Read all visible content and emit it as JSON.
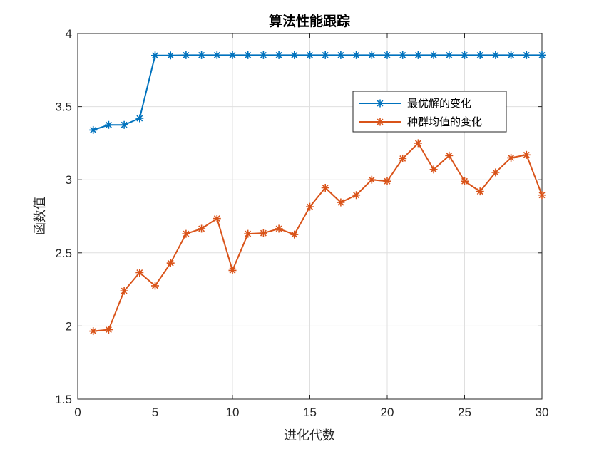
{
  "chart_data": {
    "type": "line",
    "title": "算法性能跟踪",
    "xlabel": "进化代数",
    "ylabel": "函数值",
    "xlim": [
      0,
      30
    ],
    "ylim": [
      1.5,
      4
    ],
    "xticks": [
      0,
      5,
      10,
      15,
      20,
      25,
      30
    ],
    "xtick_labels": [
      "0",
      "5",
      "10",
      "15",
      "20",
      "25",
      "30"
    ],
    "yticks": [
      1.5,
      2,
      2.5,
      3,
      3.5,
      4
    ],
    "ytick_labels": [
      "1.5",
      "2",
      "2.5",
      "3",
      "3.5",
      "4"
    ],
    "grid": true,
    "legend_position": "top-right",
    "marker": "asterisk",
    "x": [
      1,
      2,
      3,
      4,
      5,
      6,
      7,
      8,
      9,
      10,
      11,
      12,
      13,
      14,
      15,
      16,
      17,
      18,
      19,
      20,
      21,
      22,
      23,
      24,
      25,
      26,
      27,
      28,
      29,
      30
    ],
    "series": [
      {
        "name": "最优解的变化",
        "color": "#0072BD",
        "values": [
          3.34,
          3.375,
          3.375,
          3.42,
          3.85,
          3.85,
          3.852,
          3.852,
          3.852,
          3.852,
          3.852,
          3.852,
          3.852,
          3.852,
          3.852,
          3.852,
          3.852,
          3.852,
          3.852,
          3.852,
          3.852,
          3.852,
          3.852,
          3.852,
          3.852,
          3.852,
          3.852,
          3.852,
          3.852,
          3.852
        ]
      },
      {
        "name": "种群均值的变化",
        "color": "#D95319",
        "values": [
          1.965,
          1.975,
          2.24,
          2.365,
          2.275,
          2.43,
          2.63,
          2.665,
          2.735,
          2.38,
          2.63,
          2.635,
          2.665,
          2.625,
          2.815,
          2.945,
          2.845,
          2.895,
          3.0,
          2.99,
          3.145,
          3.25,
          3.07,
          3.165,
          2.99,
          2.92,
          3.05,
          3.15,
          3.17,
          2.895
        ]
      }
    ]
  }
}
